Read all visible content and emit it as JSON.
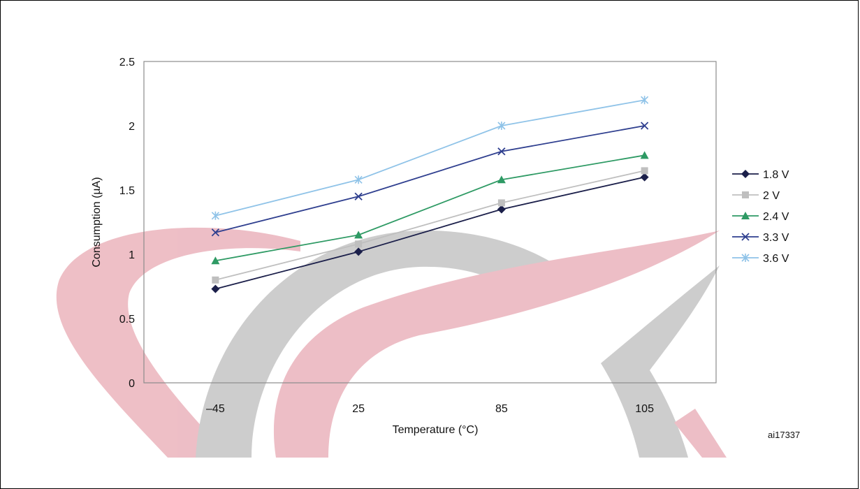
{
  "figure_id": "ai17337",
  "chart_data": {
    "type": "line",
    "xlabel": "Temperature (°C)",
    "ylabel": "Consumption (µA)",
    "categories": [
      "–45",
      "25",
      "85",
      "105"
    ],
    "ylim": [
      0,
      2.5
    ],
    "yticks": [
      "0",
      "0.5",
      "1",
      "1.5",
      "2",
      "2.5"
    ],
    "grid": false,
    "legend_position": "right",
    "series": [
      {
        "name": "1.8 V",
        "values": [
          0.73,
          1.02,
          1.35,
          1.6
        ],
        "color": "#1b1f4a",
        "marker": "diamond"
      },
      {
        "name": "2 V",
        "values": [
          0.8,
          1.08,
          1.4,
          1.65
        ],
        "color": "#bfbfbf",
        "marker": "square"
      },
      {
        "name": "2.4 V",
        "values": [
          0.95,
          1.15,
          1.58,
          1.77
        ],
        "color": "#2e9a64",
        "marker": "triangle"
      },
      {
        "name": "3.3 V",
        "values": [
          1.17,
          1.45,
          1.8,
          2.0
        ],
        "color": "#2f3f8f",
        "marker": "x"
      },
      {
        "name": "3.6 V",
        "values": [
          1.3,
          1.58,
          2.0,
          2.2
        ],
        "color": "#8fc3e8",
        "marker": "asterisk"
      }
    ]
  },
  "watermark": {
    "colors": [
      "#e8a9b3",
      "#bdbdbd"
    ]
  }
}
